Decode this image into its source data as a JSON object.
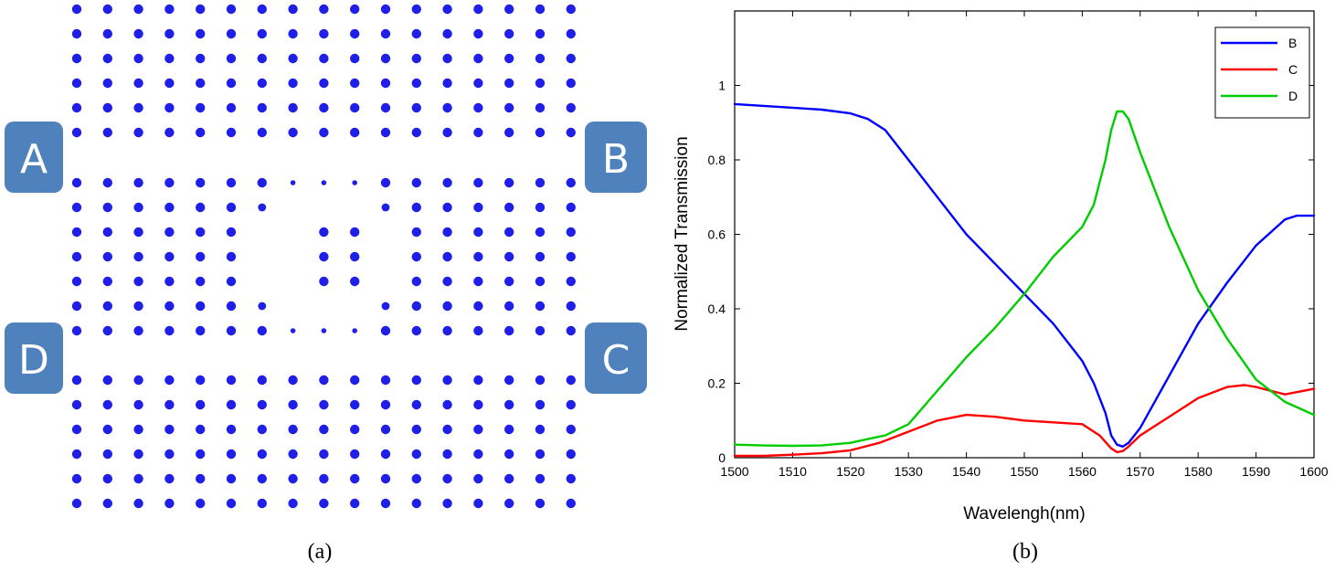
{
  "panel_a": {
    "caption": "(a)",
    "ports": [
      {
        "label": "A",
        "color": "#4f81bd"
      },
      {
        "label": "B",
        "color": "#4f81bd"
      },
      {
        "label": "C",
        "color": "#4f81bd"
      },
      {
        "label": "D",
        "color": "#4f81bd"
      }
    ],
    "rod_color": "#1f1fe8"
  },
  "panel_b": {
    "caption": "(b)"
  },
  "chart_data": {
    "type": "line",
    "title": "",
    "xlabel": "Wavelengh(nm)",
    "ylabel": "Normalized Transmission",
    "xlim": [
      1500,
      1600
    ],
    "ylim": [
      0,
      1.2
    ],
    "xticks": [
      1500,
      1510,
      1520,
      1530,
      1540,
      1550,
      1560,
      1570,
      1580,
      1590,
      1600
    ],
    "yticks": [
      0,
      0.2,
      0.4,
      0.6,
      0.8,
      1
    ],
    "ytick_labels": [
      "0",
      "0.2",
      "0.4",
      "0.6",
      "0.8",
      "1"
    ],
    "grid": false,
    "legend_position": "top-right",
    "series": [
      {
        "name": "B",
        "color": "#0000ff",
        "x": [
          1500,
          1505,
          1510,
          1515,
          1520,
          1523,
          1526,
          1530,
          1535,
          1540,
          1545,
          1550,
          1555,
          1560,
          1562,
          1564,
          1565,
          1566,
          1567,
          1568,
          1570,
          1575,
          1580,
          1585,
          1590,
          1595,
          1597,
          1600
        ],
        "y": [
          0.95,
          0.945,
          0.94,
          0.935,
          0.925,
          0.91,
          0.88,
          0.8,
          0.7,
          0.6,
          0.52,
          0.44,
          0.36,
          0.26,
          0.2,
          0.12,
          0.06,
          0.035,
          0.03,
          0.04,
          0.08,
          0.22,
          0.36,
          0.47,
          0.57,
          0.64,
          0.65,
          0.65
        ]
      },
      {
        "name": "C",
        "color": "#ff0000",
        "x": [
          1500,
          1505,
          1510,
          1515,
          1520,
          1525,
          1530,
          1535,
          1540,
          1545,
          1550,
          1555,
          1560,
          1563,
          1565,
          1566,
          1567,
          1568,
          1570,
          1575,
          1580,
          1585,
          1588,
          1590,
          1595,
          1600
        ],
        "y": [
          0.005,
          0.005,
          0.008,
          0.012,
          0.02,
          0.04,
          0.07,
          0.1,
          0.115,
          0.11,
          0.1,
          0.095,
          0.09,
          0.06,
          0.025,
          0.015,
          0.018,
          0.03,
          0.06,
          0.11,
          0.16,
          0.19,
          0.195,
          0.19,
          0.17,
          0.185
        ]
      },
      {
        "name": "D",
        "color": "#00cc00",
        "x": [
          1500,
          1505,
          1510,
          1515,
          1520,
          1523,
          1526,
          1530,
          1535,
          1540,
          1545,
          1550,
          1555,
          1560,
          1562,
          1564,
          1565,
          1566,
          1567,
          1568,
          1570,
          1575,
          1580,
          1585,
          1590,
          1595,
          1600
        ],
        "y": [
          0.035,
          0.033,
          0.032,
          0.033,
          0.04,
          0.05,
          0.06,
          0.09,
          0.18,
          0.27,
          0.35,
          0.44,
          0.54,
          0.62,
          0.68,
          0.8,
          0.88,
          0.93,
          0.93,
          0.91,
          0.82,
          0.62,
          0.45,
          0.32,
          0.21,
          0.15,
          0.115
        ]
      }
    ]
  }
}
